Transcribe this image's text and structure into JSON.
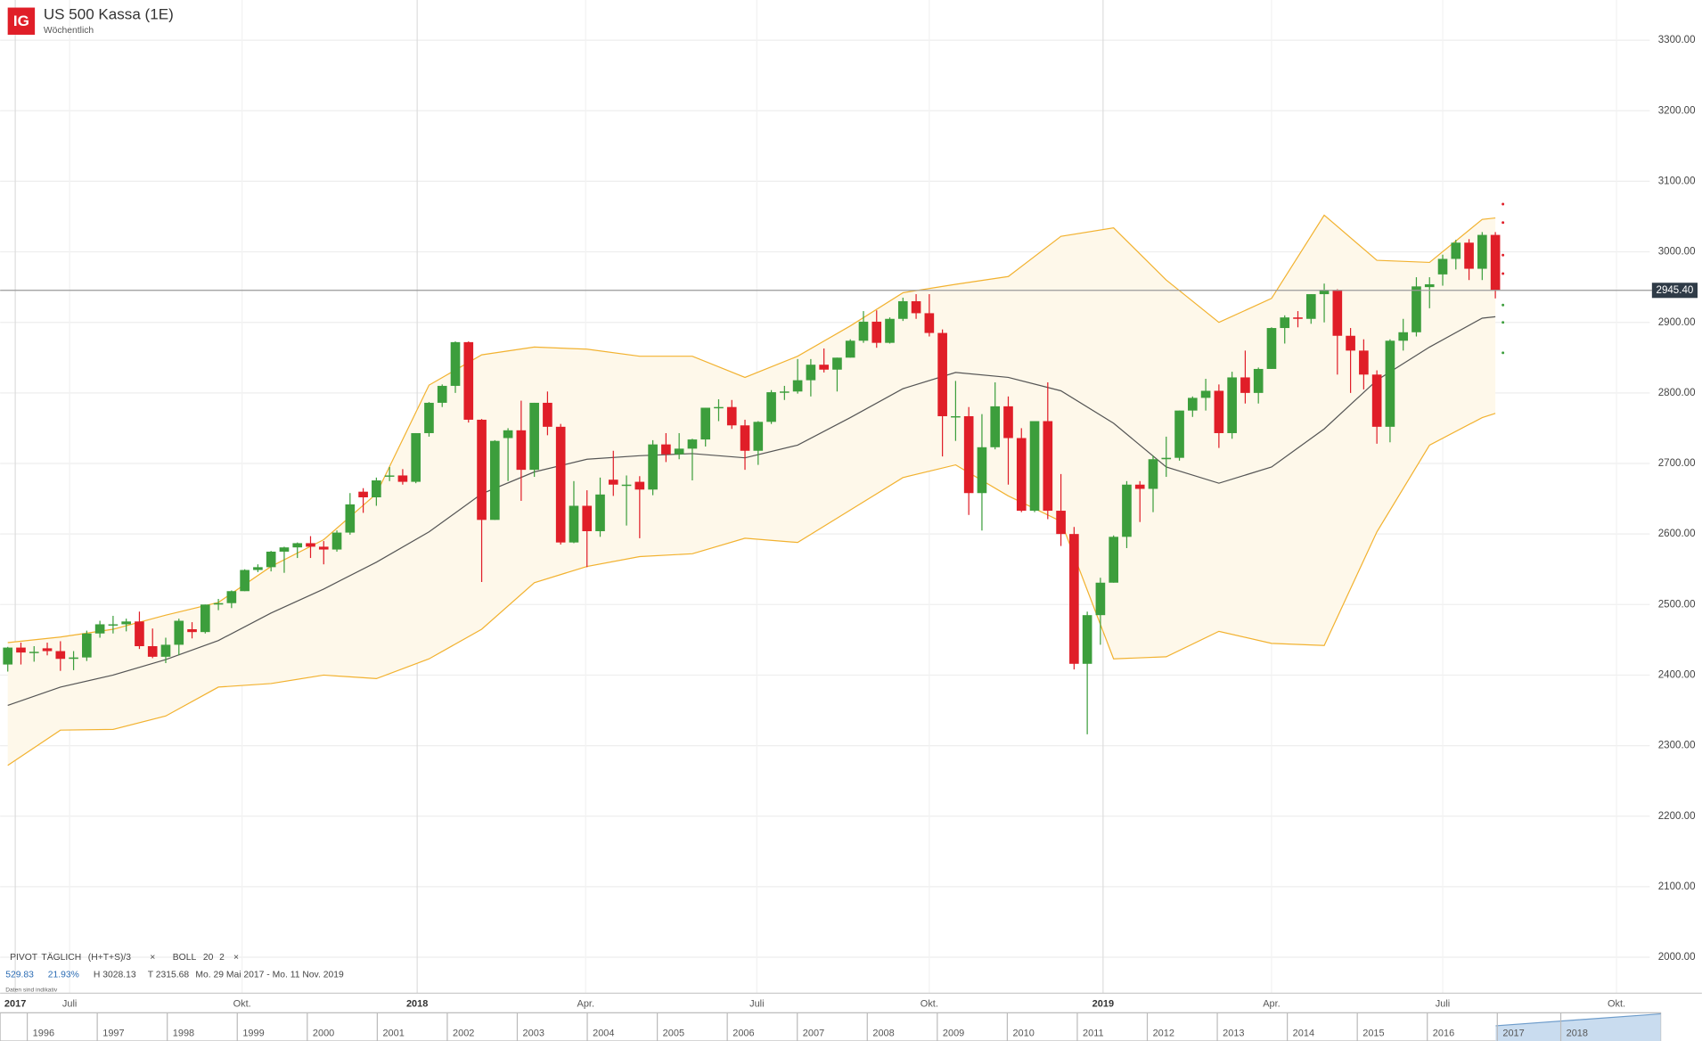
{
  "chart_data": {
    "type": "candlestick",
    "logo": "IG",
    "title": "US 500 Kassa (1E)",
    "subtitle": "Wöchentlich",
    "up_color": "#3c9e3c",
    "down_color": "#e01e28",
    "open": [
      2415,
      2439,
      2432,
      2438,
      2434,
      2423,
      2425,
      2459,
      2472,
      2472,
      2476,
      2441,
      2426,
      2443,
      2465,
      2461,
      2500,
      2502,
      2519,
      2549,
      2553,
      2575,
      2581,
      2587,
      2582,
      2578,
      2602,
      2660,
      2652,
      2683,
      2683,
      2674,
      2743,
      2786,
      2810,
      2872,
      2762,
      2620,
      2736,
      2747,
      2691,
      2786,
      2752,
      2588,
      2640,
      2604,
      2677,
      2670,
      2674,
      2663,
      2727,
      2713,
      2721,
      2734,
      2779,
      2780,
      2754,
      2718,
      2759,
      2801,
      2802,
      2818,
      2840,
      2833,
      2850,
      2874,
      2901,
      2871,
      2905,
      2930,
      2913,
      2885,
      2767,
      2767,
      2658,
      2723,
      2781,
      2736,
      2633,
      2760,
      2633,
      2600,
      2416,
      2485,
      2531,
      2596,
      2670,
      2664,
      2706,
      2708,
      2775,
      2793,
      2803,
      2743,
      2822,
      2800,
      2834,
      2892,
      2907,
      2905,
      2940,
      2946,
      2881,
      2860,
      2826,
      2752,
      2874,
      2886,
      2950,
      2968,
      2990,
      3013,
      2976,
      3024
    ],
    "high": [
      2440,
      2446,
      2441,
      2446,
      2448,
      2434,
      2463,
      2477,
      2484,
      2480,
      2490,
      2466,
      2453,
      2480,
      2475,
      2500,
      2508,
      2520,
      2550,
      2557,
      2576,
      2582,
      2588,
      2597,
      2590,
      2605,
      2658,
      2665,
      2680,
      2695,
      2692,
      2743,
      2787,
      2812,
      2873,
      2873,
      2763,
      2733,
      2750,
      2789,
      2786,
      2802,
      2756,
      2675,
      2662,
      2680,
      2718,
      2683,
      2682,
      2733,
      2743,
      2743,
      2735,
      2779,
      2791,
      2790,
      2762,
      2760,
      2804,
      2810,
      2848,
      2848,
      2863,
      2850,
      2876,
      2916,
      2917,
      2907,
      2935,
      2940,
      2940,
      2890,
      2817,
      2780,
      2770,
      2815,
      2795,
      2750,
      2760,
      2815,
      2685,
      2610,
      2490,
      2538,
      2598,
      2675,
      2675,
      2711,
      2738,
      2775,
      2795,
      2820,
      2812,
      2830,
      2860,
      2836,
      2893,
      2910,
      2916,
      2940,
      2955,
      2947,
      2892,
      2876,
      2832,
      2876,
      2905,
      2964,
      2964,
      2996,
      3017,
      3018,
      3028,
      3028
    ],
    "low": [
      2405,
      2415,
      2419,
      2428,
      2406,
      2407,
      2420,
      2453,
      2459,
      2462,
      2437,
      2424,
      2417,
      2428,
      2452,
      2459,
      2492,
      2495,
      2519,
      2546,
      2547,
      2545,
      2566,
      2566,
      2557,
      2575,
      2599,
      2630,
      2640,
      2675,
      2670,
      2672,
      2738,
      2780,
      2800,
      2758,
      2532,
      2620,
      2675,
      2647,
      2681,
      2740,
      2585,
      2587,
      2553,
      2596,
      2654,
      2612,
      2594,
      2655,
      2702,
      2706,
      2676,
      2724,
      2760,
      2749,
      2691,
      2698,
      2756,
      2790,
      2799,
      2795,
      2829,
      2802,
      2850,
      2871,
      2864,
      2870,
      2902,
      2905,
      2880,
      2710,
      2732,
      2627,
      2605,
      2720,
      2670,
      2631,
      2631,
      2621,
      2583,
      2408,
      2316,
      2443,
      2531,
      2580,
      2617,
      2631,
      2681,
      2704,
      2766,
      2775,
      2722,
      2735,
      2785,
      2785,
      2834,
      2870,
      2893,
      2898,
      2900,
      2826,
      2800,
      2805,
      2728,
      2730,
      2860,
      2880,
      2920,
      2952,
      2975,
      2960,
      2960,
      2934
    ],
    "close": [
      2439,
      2432,
      2433,
      2434,
      2423,
      2425,
      2459,
      2472,
      2472,
      2476,
      2441,
      2426,
      2443,
      2477,
      2461,
      2500,
      2502,
      2519,
      2549,
      2553,
      2575,
      2581,
      2587,
      2582,
      2578,
      2602,
      2642,
      2652,
      2676,
      2683,
      2674,
      2743,
      2786,
      2810,
      2872,
      2762,
      2620,
      2732,
      2747,
      2691,
      2786,
      2752,
      2588,
      2640,
      2604,
      2656,
      2670,
      2670,
      2663,
      2727,
      2713,
      2721,
      2734,
      2779,
      2780,
      2754,
      2718,
      2759,
      2801,
      2802,
      2818,
      2840,
      2833,
      2850,
      2874,
      2901,
      2871,
      2905,
      2930,
      2913,
      2885,
      2767,
      2767,
      2658,
      2723,
      2781,
      2736,
      2633,
      2760,
      2633,
      2600,
      2416,
      2485,
      2531,
      2596,
      2670,
      2664,
      2706,
      2708,
      2775,
      2793,
      2803,
      2743,
      2822,
      2800,
      2834,
      2892,
      2907,
      2905,
      2940,
      2946,
      2881,
      2860,
      2826,
      2752,
      2874,
      2886,
      2951,
      2954,
      2990,
      3013,
      2976,
      3024,
      2946
    ],
    "band_fill": "#fef8ea",
    "overlays": [
      {
        "color": "#f2b230",
        "x": [
          0,
          4,
          8,
          12,
          16,
          20,
          24,
          28,
          32,
          36,
          40,
          44,
          48,
          52,
          56,
          60,
          64,
          68,
          72,
          76,
          80,
          84,
          88,
          92,
          96,
          100,
          104,
          108,
          112,
          113
        ],
        "values": [
          2446,
          2454,
          2465,
          2485,
          2503,
          2554,
          2592,
          2657,
          2811,
          2854,
          2865,
          2862,
          2852,
          2852,
          2822,
          2852,
          2895,
          2942,
          2954,
          2965,
          3022,
          3034,
          2960,
          2900,
          2934,
          3052,
          2988,
          2985,
          3046,
          3048
        ]
      },
      {
        "color": "#555555",
        "x": [
          0,
          4,
          8,
          12,
          16,
          20,
          24,
          28,
          32,
          36,
          40,
          44,
          48,
          52,
          56,
          60,
          64,
          68,
          72,
          76,
          80,
          84,
          88,
          92,
          96,
          100,
          104,
          108,
          112,
          113
        ],
        "values": [
          2357,
          2383,
          2400,
          2422,
          2449,
          2488,
          2522,
          2560,
          2603,
          2657,
          2688,
          2706,
          2711,
          2714,
          2708,
          2726,
          2765,
          2806,
          2829,
          2822,
          2803,
          2757,
          2695,
          2672,
          2695,
          2749,
          2818,
          2865,
          2906,
          2908
        ]
      },
      {
        "color": "#f2b230",
        "x": [
          0,
          4,
          8,
          12,
          16,
          20,
          24,
          28,
          32,
          36,
          40,
          44,
          48,
          52,
          56,
          60,
          64,
          68,
          72,
          76,
          80,
          84,
          88,
          92,
          96,
          100,
          104,
          108,
          112,
          113
        ],
        "values": [
          2272,
          2322,
          2323,
          2342,
          2383,
          2388,
          2400,
          2395,
          2423,
          2465,
          2531,
          2554,
          2568,
          2572,
          2594,
          2588,
          2634,
          2680,
          2698,
          2654,
          2618,
          2423,
          2426,
          2462,
          2445,
          2442,
          2603,
          2726,
          2765,
          2771
        ]
      }
    ],
    "pivot_levels": {
      "values": [
        3067.7,
        3041.5,
        2995.4,
        2969.2,
        2924.6,
        2900,
        2856.9
      ],
      "colors": [
        "#e01e28",
        "#e01e28",
        "#e01e28",
        "#e01e28",
        "#3c9e3c",
        "#3c9e3c",
        "#3c9e3c"
      ]
    },
    "last_price": {
      "value": 2945.4,
      "label": "2945.40"
    },
    "ylim": [
      1949,
      3357
    ],
    "yticks": [
      {
        "value": 2000,
        "label": "2000.00"
      },
      {
        "value": 2100,
        "label": "2100.00"
      },
      {
        "value": 2200,
        "label": "2200.00"
      },
      {
        "value": 2300,
        "label": "2300.00"
      },
      {
        "value": 2400,
        "label": "2400.00"
      },
      {
        "value": 2500,
        "label": "2500.00"
      },
      {
        "value": 2600,
        "label": "2600.00"
      },
      {
        "value": 2700,
        "label": "2700.00"
      },
      {
        "value": 2800,
        "label": "2800.00"
      },
      {
        "value": 2900,
        "label": "2900.00"
      },
      {
        "value": 3000,
        "label": "3000.00"
      },
      {
        "value": 3100,
        "label": "3100.00"
      },
      {
        "value": 3200,
        "label": "3200.00"
      },
      {
        "value": 3300,
        "label": "3300.00"
      }
    ],
    "xlim": [
      -0.58,
      124.73
    ],
    "xticks": [
      {
        "value": 0.57,
        "label": "2017"
      },
      {
        "value": 4.7,
        "label": "Juli"
      },
      {
        "value": 17.8,
        "label": "Okt."
      },
      {
        "value": 31.1,
        "label": "2018"
      },
      {
        "value": 43.9,
        "label": "Apr."
      },
      {
        "value": 56.9,
        "label": "Juli"
      },
      {
        "value": 70,
        "label": "Okt."
      },
      {
        "value": 83.2,
        "label": "2019"
      },
      {
        "value": 96,
        "label": "Apr."
      },
      {
        "value": 109,
        "label": "Juli"
      },
      {
        "value": 122.2,
        "label": "Okt."
      }
    ],
    "grid": true,
    "legend": {
      "pivot": "PIVOT",
      "pivot_period": "TÄGLICH",
      "pivot_formula": "(H+T+S)/3",
      "close_symbol": "×",
      "boll": "BOLL",
      "boll_period": 20,
      "boll_dev": 2
    },
    "stats": {
      "change": 529.83,
      "change_pct": {
        "value": 21.93,
        "label": "21.93%"
      },
      "range_high": {
        "value": 3028.13,
        "label": "H 3028.13"
      },
      "range_low": {
        "value": 2315.68,
        "label": "T 2315.68"
      },
      "date_range": "Mo. 29 Mai 2017 - Mo. 11 Nov. 2019",
      "disclaimer": "Daten sind indikativ"
    },
    "navigator": [
      1996,
      1997,
      1998,
      1999,
      2000,
      2001,
      2002,
      2003,
      2004,
      2005,
      2006,
      2007,
      2008,
      2009,
      2010,
      2011,
      2012,
      2013,
      2014,
      2015,
      2016,
      2017,
      2018
    ]
  }
}
